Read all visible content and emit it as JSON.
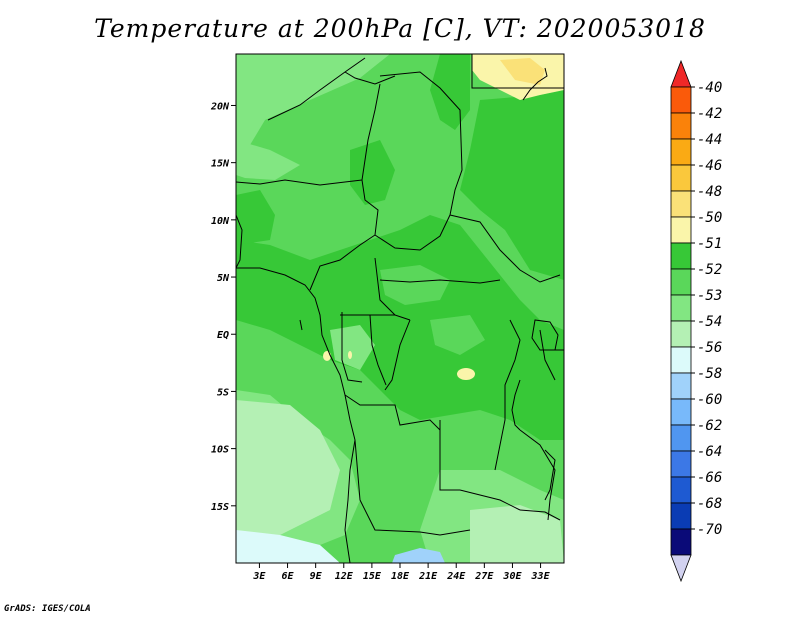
{
  "title": "Temperature at 200hPa [C], VT: 2020053018",
  "credit": "GrADS: IGES/COLA",
  "map": {
    "x_ticks": [
      "3E",
      "6E",
      "9E",
      "12E",
      "15E",
      "18E",
      "21E",
      "24E",
      "27E",
      "30E",
      "33E"
    ],
    "y_ticks": [
      "20N",
      "15N",
      "10N",
      "5N",
      "EQ",
      "5S",
      "10S",
      "15S"
    ],
    "x_tick_values": [
      3,
      6,
      9,
      12,
      15,
      18,
      21,
      24,
      27,
      30,
      33
    ],
    "y_tick_values": [
      20,
      15,
      10,
      5,
      0,
      -5,
      -10,
      -15
    ],
    "lon_range": [
      0.5,
      35.5
    ],
    "lat_range": [
      -20,
      24.5
    ]
  },
  "colorbar": {
    "labels": [
      "-40",
      "-42",
      "-44",
      "-46",
      "-48",
      "-50",
      "-51",
      "-52",
      "-53",
      "-54",
      "-56",
      "-58",
      "-60",
      "-62",
      "-64",
      "-66",
      "-68",
      "-70"
    ],
    "colors": [
      "#f02828",
      "#fa5a0a",
      "#fa820a",
      "#faaa14",
      "#fac83c",
      "#fae178",
      "#faf5aa",
      "#37c837",
      "#5ad75a",
      "#82e682",
      "#b4f0b4",
      "#dcfafa",
      "#a0d2fa",
      "#78b9fa",
      "#5096f0",
      "#3c78e6",
      "#1e5ad2",
      "#0a3cb4",
      "#0a0a78",
      "#d2d2f0"
    ]
  },
  "chart_data": {
    "type": "heatmap",
    "title": "Temperature at 200hPa [C], VT: 2020053018",
    "variable": "Temperature at 200hPa",
    "units": "C",
    "valid_time": "2020053018",
    "x_ticks": [
      "3E",
      "6E",
      "9E",
      "12E",
      "15E",
      "18E",
      "21E",
      "24E",
      "27E",
      "30E",
      "33E"
    ],
    "y_ticks": [
      "20N",
      "15N",
      "10N",
      "5N",
      "EQ",
      "5S",
      "10S",
      "15S"
    ],
    "color_levels": [
      -40,
      -42,
      -44,
      -46,
      -48,
      -50,
      -51,
      -52,
      -53,
      -54,
      -56,
      -58,
      -60,
      -62,
      -64,
      -66,
      -68,
      -70
    ]
  }
}
